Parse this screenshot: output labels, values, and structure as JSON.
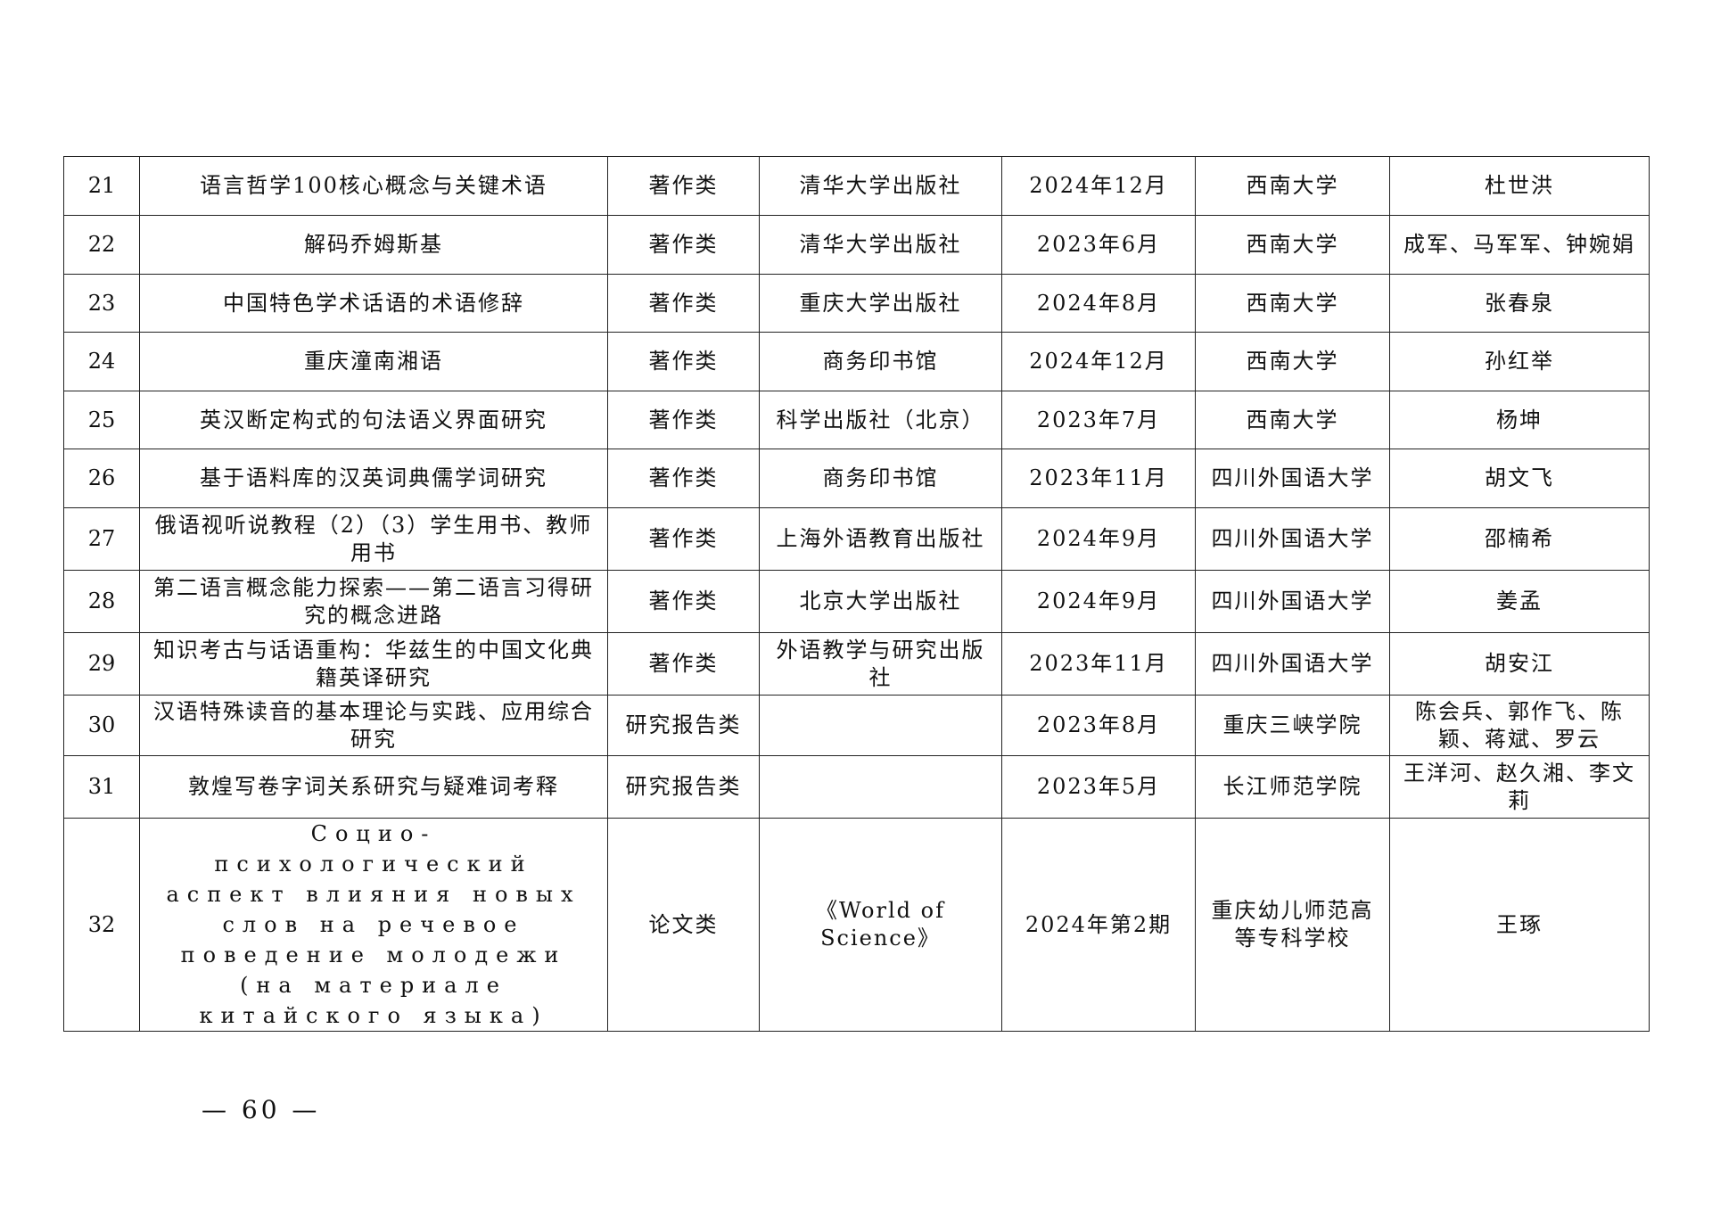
{
  "table": {
    "rows": [
      {
        "no": "21",
        "title": "语言哲学100核心概念与关键术语",
        "type": "著作类",
        "publisher": "清华大学出版社",
        "date": "2024年12月",
        "unit": "西南大学",
        "authors": "杜世洪"
      },
      {
        "no": "22",
        "title": "解码乔姆斯基",
        "type": "著作类",
        "publisher": "清华大学出版社",
        "date": "2023年6月",
        "unit": "西南大学",
        "authors": "成军、马军军、钟婉娟"
      },
      {
        "no": "23",
        "title": "中国特色学术话语的术语修辞",
        "type": "著作类",
        "publisher": "重庆大学出版社",
        "date": "2024年8月",
        "unit": "西南大学",
        "authors": "张春泉"
      },
      {
        "no": "24",
        "title": "重庆潼南湘语",
        "type": "著作类",
        "publisher": "商务印书馆",
        "date": "2024年12月",
        "unit": "西南大学",
        "authors": "孙红举"
      },
      {
        "no": "25",
        "title": "英汉断定构式的句法语义界面研究",
        "type": "著作类",
        "publisher": "科学出版社（北京）",
        "date": "2023年7月",
        "unit": "西南大学",
        "authors": "杨坤"
      },
      {
        "no": "26",
        "title": "基于语料库的汉英词典儒学词研究",
        "type": "著作类",
        "publisher": "商务印书馆",
        "date": "2023年11月",
        "unit": "四川外国语大学",
        "authors": "胡文飞"
      },
      {
        "no": "27",
        "title": "俄语视听说教程（2）（3）学生用书、教师用书",
        "type": "著作类",
        "publisher": "上海外语教育出版社",
        "date": "2024年9月",
        "unit": "四川外国语大学",
        "authors": "邵楠希"
      },
      {
        "no": "28",
        "title": "第二语言概念能力探索——第二语言习得研究的概念进路",
        "type": "著作类",
        "publisher": "北京大学出版社",
        "date": "2024年9月",
        "unit": "四川外国语大学",
        "authors": "姜孟"
      },
      {
        "no": "29",
        "title": "知识考古与话语重构：华兹生的中国文化典籍英译研究",
        "type": "著作类",
        "publisher": "外语教学与研究出版社",
        "date": "2023年11月",
        "unit": "四川外国语大学",
        "authors": "胡安江"
      },
      {
        "no": "30",
        "title": "汉语特殊读音的基本理论与实践、应用综合研究",
        "type": "研究报告类",
        "publisher": "",
        "date": "2023年8月",
        "unit": "重庆三峡学院",
        "authors": "陈会兵、郭作飞、陈颖、蒋斌、罗云"
      },
      {
        "no": "31",
        "title": "敦煌写卷字词关系研究与疑难词考释",
        "type": "研究报告类",
        "publisher": "",
        "date": "2023年5月",
        "unit": "长江师范学院",
        "authors": "王洋河、赵久湘、李文莉"
      },
      {
        "no": "32",
        "title": "Социо-психологический аспект влияния новых слов на речевое поведение молодежи (на материале китайского языка)",
        "type": "论文类",
        "publisher": "《World of Science》",
        "date": "2024年第2期",
        "unit": "重庆幼儿师范高等专科学校",
        "authors": "王琢"
      }
    ]
  },
  "footer": {
    "page_number": "— 60 —"
  }
}
